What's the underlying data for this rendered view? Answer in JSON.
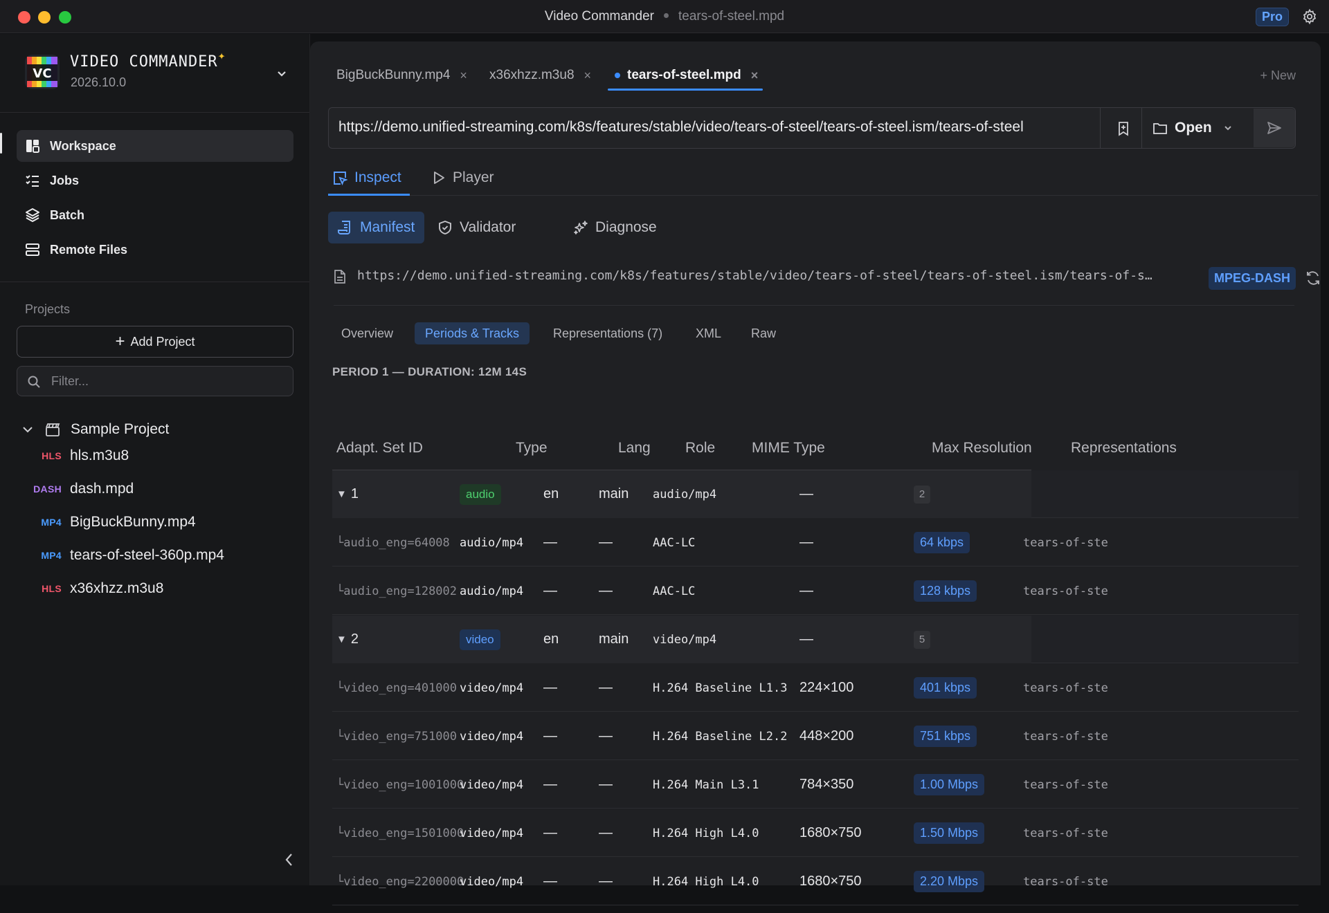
{
  "window": {
    "app_title": "Video Commander",
    "file_title": "tears-of-steel.mpd",
    "pro_label": "Pro"
  },
  "sidebar": {
    "brand_logo_text": "VC",
    "brand_name": "VIDEO COMMANDER",
    "brand_version": "2026.10.0",
    "nav": [
      {
        "label": "Workspace",
        "icon": "workspace-icon",
        "active": true
      },
      {
        "label": "Jobs",
        "icon": "jobs-list-icon",
        "active": false
      },
      {
        "label": "Batch",
        "icon": "layers-icon",
        "active": false
      },
      {
        "label": "Remote Files",
        "icon": "server-icon",
        "active": false
      }
    ],
    "projects_label": "Projects",
    "add_project_label": "Add Project",
    "filter_placeholder": "Filter...",
    "project_name": "Sample Project",
    "files": [
      {
        "type": "HLS",
        "name": "hls.m3u8",
        "color": "#f0566a"
      },
      {
        "type": "DASH",
        "name": "dash.mpd",
        "color": "#b07cf0"
      },
      {
        "type": "MP4",
        "name": "BigBuckBunny.mp4",
        "color": "#4a9bff"
      },
      {
        "type": "MP4",
        "name": "tears-of-steel-360p.mp4",
        "color": "#4a9bff"
      },
      {
        "type": "HLS",
        "name": "x36xhzz.m3u8",
        "color": "#f0566a"
      }
    ]
  },
  "tabs": [
    {
      "label": "BigBuckBunny.mp4",
      "active": false
    },
    {
      "label": "x36xhzz.m3u8",
      "active": false
    },
    {
      "label": "tears-of-steel.mpd",
      "active": true
    }
  ],
  "new_tab_label": "+ New",
  "url_input": "https://demo.unified-streaming.com/k8s/features/stable/video/tears-of-steel/tears-of-steel.ism/tears-of-steel",
  "open_label": "Open",
  "modes": [
    {
      "label": "Inspect",
      "active": true
    },
    {
      "label": "Player",
      "active": false
    }
  ],
  "subtabs": [
    {
      "label": "Manifest",
      "active": true
    },
    {
      "label": "Validator",
      "active": false
    },
    {
      "label": "Diagnose",
      "active": false
    }
  ],
  "source": {
    "url": "https://demo.unified-streaming.com/k8s/features/stable/video/tears-of-steel/tears-of-steel.ism/tears-of-s…",
    "format": "MPEG-DASH"
  },
  "view_tabs": [
    {
      "label": "Overview",
      "active": false
    },
    {
      "label": "Periods & Tracks",
      "active": true
    },
    {
      "label": "Representations (7)",
      "active": false
    },
    {
      "label": "XML",
      "active": false
    },
    {
      "label": "Raw",
      "active": false
    }
  ],
  "period_title": "PERIOD 1 — DURATION: 12M 14S",
  "table": {
    "headers": [
      "Adapt. Set ID",
      "Type",
      "Lang",
      "Role",
      "MIME Type",
      "Max Resolution",
      "Representations"
    ],
    "rows": [
      {
        "kind": "group",
        "id": "1",
        "type": "audio",
        "lang": "en",
        "role": "main",
        "mime": "audio/mp4",
        "res": "—",
        "reps": "2"
      },
      {
        "kind": "rep",
        "id": "audio_eng=64008",
        "type": "audio/mp4",
        "lang": "—",
        "role": "—",
        "mime": "AAC-LC",
        "res": "—",
        "bitrate": "64 kbps",
        "extra": "tears-of-ste"
      },
      {
        "kind": "rep",
        "id": "audio_eng=128002",
        "type": "audio/mp4",
        "lang": "—",
        "role": "—",
        "mime": "AAC-LC",
        "res": "—",
        "bitrate": "128 kbps",
        "extra": "tears-of-ste"
      },
      {
        "kind": "group",
        "id": "2",
        "type": "video",
        "lang": "en",
        "role": "main",
        "mime": "video/mp4",
        "res": "—",
        "reps": "5"
      },
      {
        "kind": "rep",
        "id": "video_eng=401000",
        "type": "video/mp4",
        "lang": "—",
        "role": "—",
        "mime": "H.264 Baseline L1.3",
        "res": "224×100",
        "bitrate": "401 kbps",
        "extra": "tears-of-ste"
      },
      {
        "kind": "rep",
        "id": "video_eng=751000",
        "type": "video/mp4",
        "lang": "—",
        "role": "—",
        "mime": "H.264 Baseline L2.2",
        "res": "448×200",
        "bitrate": "751 kbps",
        "extra": "tears-of-ste"
      },
      {
        "kind": "rep",
        "id": "video_eng=1001000",
        "type": "video/mp4",
        "lang": "—",
        "role": "—",
        "mime": "H.264 Main L3.1",
        "res": "784×350",
        "bitrate": "1.00 Mbps",
        "extra": "tears-of-ste"
      },
      {
        "kind": "rep",
        "id": "video_eng=1501000",
        "type": "video/mp4",
        "lang": "—",
        "role": "—",
        "mime": "H.264 High L4.0",
        "res": "1680×750",
        "bitrate": "1.50 Mbps",
        "extra": "tears-of-ste"
      },
      {
        "kind": "rep",
        "id": "video_eng=2200000",
        "type": "video/mp4",
        "lang": "—",
        "role": "—",
        "mime": "H.264 High L4.0",
        "res": "1680×750",
        "bitrate": "2.20 Mbps",
        "extra": "tears-of-ste"
      }
    ]
  }
}
